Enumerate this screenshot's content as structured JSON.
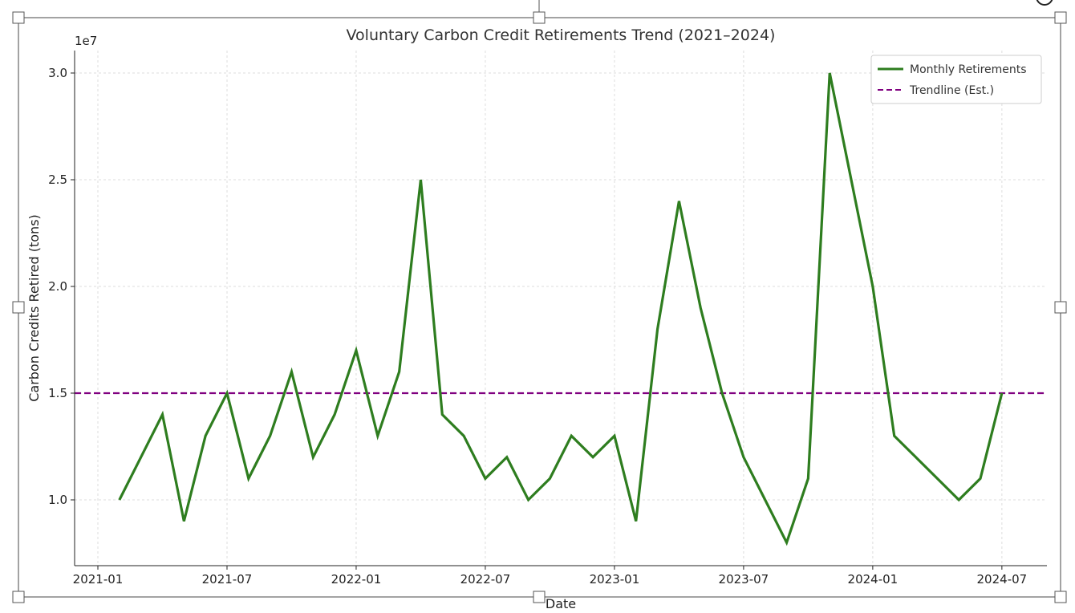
{
  "chart_data": {
    "type": "line",
    "title": "Voluntary Carbon Credit Retirements Trend (2021–2024)",
    "xlabel": "Date",
    "ylabel": "Carbon Credits Retired (tons)",
    "y_offset_label": "1e7",
    "y_scale": 10000000,
    "ylim": [
      0.69,
      3.1
    ],
    "yticks": [
      1.0,
      1.5,
      2.0,
      2.5,
      3.0
    ],
    "ytick_labels": [
      "1.0",
      "1.5",
      "2.0",
      "2.5",
      "3.0"
    ],
    "xticks": [
      "2021-01",
      "2021-07",
      "2022-01",
      "2022-07",
      "2023-01",
      "2023-07",
      "2024-01",
      "2024-07"
    ],
    "grid": true,
    "legend_position": "top-right",
    "series": [
      {
        "name": "Monthly Retirements",
        "color": "#2e7d1f",
        "style": "solid",
        "x": [
          "2021-02",
          "2021-03",
          "2021-04",
          "2021-05",
          "2021-06",
          "2021-07",
          "2021-08",
          "2021-09",
          "2021-10",
          "2021-11",
          "2021-12",
          "2022-01",
          "2022-02",
          "2022-03",
          "2022-04",
          "2022-05",
          "2022-06",
          "2022-07",
          "2022-08",
          "2022-09",
          "2022-10",
          "2022-11",
          "2022-12",
          "2023-01",
          "2023-02",
          "2023-03",
          "2023-04",
          "2023-05",
          "2023-06",
          "2023-07",
          "2023-08",
          "2023-09",
          "2023-10",
          "2023-11",
          "2023-12",
          "2024-01",
          "2024-02",
          "2024-03",
          "2024-04",
          "2024-05",
          "2024-06",
          "2024-07"
        ],
        "values": [
          1.0,
          1.2,
          1.4,
          0.9,
          1.3,
          1.5,
          1.1,
          1.3,
          1.6,
          1.2,
          1.4,
          1.7,
          1.3,
          1.6,
          2.5,
          1.4,
          1.3,
          1.1,
          1.2,
          1.0,
          1.1,
          1.3,
          1.2,
          1.3,
          0.9,
          1.8,
          2.4,
          1.9,
          1.5,
          1.2,
          1.0,
          0.8,
          1.1,
          3.0,
          2.5,
          2.0,
          1.3,
          1.2,
          1.1,
          1.0,
          1.1,
          1.5
        ]
      },
      {
        "name": "Trendline (Est.)",
        "color": "#800080",
        "style": "dashed",
        "value": 1.5
      }
    ]
  }
}
